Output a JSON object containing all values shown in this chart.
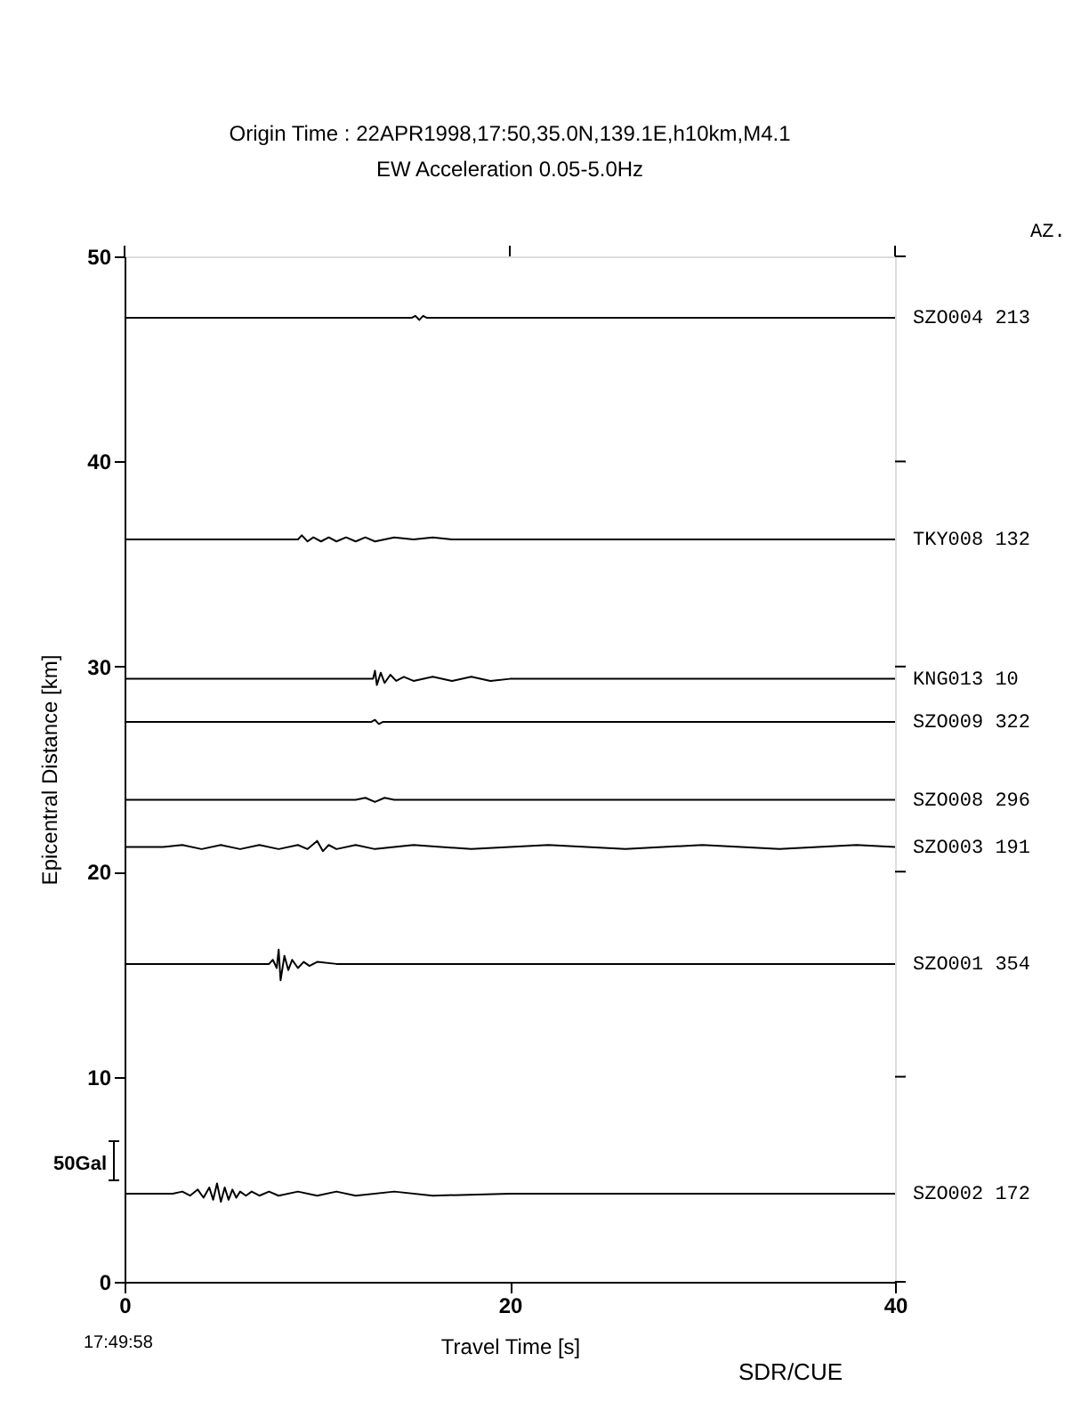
{
  "chart_data": {
    "type": "line",
    "title": "Origin Time : 22APR1998,17:50,35.0N,139.1E,h10km,M4.1",
    "subtitle": "EW Acceleration 0.05-5.0Hz",
    "xlabel": "Travel Time [s]",
    "ylabel": "Epicentral Distance [km]",
    "annotations": [
      "AZ.",
      "50Gal",
      "17:49:58",
      "SDR/CUE"
    ],
    "xlim": [
      0,
      40
    ],
    "xticks": [
      0,
      20,
      40
    ],
    "ylim": [
      0,
      50
    ],
    "yticks": [
      0,
      10,
      20,
      30,
      40,
      50
    ],
    "grid": false,
    "series": [
      {
        "name": "SZO004 213",
        "color": "#000000",
        "x": [
          0,
          14.9,
          15.1,
          15.3,
          15.5,
          15.7,
          40
        ],
        "values": [
          47.0,
          47.0,
          47.1,
          46.9,
          47.1,
          47.0,
          47.0
        ]
      },
      {
        "name": "TKY008 132",
        "color": "#000000",
        "x": [
          0,
          9.0,
          9.2,
          9.5,
          9.8,
          10.2,
          10.6,
          11,
          11.5,
          12,
          12.5,
          13,
          14,
          15,
          16,
          17,
          40
        ],
        "values": [
          36.2,
          36.2,
          36.4,
          36.1,
          36.3,
          36.1,
          36.3,
          36.1,
          36.3,
          36.1,
          36.3,
          36.1,
          36.3,
          36.2,
          36.3,
          36.2,
          36.2
        ]
      },
      {
        "name": "KNG013 10",
        "color": "#000000",
        "x": [
          0,
          12.9,
          13.0,
          13.1,
          13.3,
          13.5,
          13.8,
          14.1,
          14.5,
          15,
          16,
          17,
          18,
          19,
          20,
          40
        ],
        "values": [
          29.4,
          29.4,
          29.8,
          29.1,
          29.7,
          29.2,
          29.6,
          29.3,
          29.5,
          29.3,
          29.5,
          29.3,
          29.5,
          29.3,
          29.4,
          29.4
        ]
      },
      {
        "name": "SZO009 322",
        "color": "#000000",
        "x": [
          0,
          12.8,
          13.0,
          13.2,
          13.4,
          40
        ],
        "values": [
          27.3,
          27.3,
          27.4,
          27.2,
          27.3,
          27.3
        ]
      },
      {
        "name": "SZO008 296",
        "color": "#000000",
        "x": [
          0,
          12,
          12.5,
          13,
          13.5,
          14,
          40
        ],
        "values": [
          23.5,
          23.5,
          23.6,
          23.4,
          23.6,
          23.5,
          23.5
        ]
      },
      {
        "name": "SZO003 191",
        "color": "#000000",
        "x": [
          0,
          2,
          3,
          4,
          5,
          6,
          7,
          8,
          9,
          9.5,
          10,
          10.3,
          10.6,
          11,
          12,
          13,
          15,
          18,
          22,
          26,
          30,
          34,
          38,
          40
        ],
        "values": [
          21.2,
          21.2,
          21.3,
          21.1,
          21.3,
          21.1,
          21.3,
          21.1,
          21.3,
          21.1,
          21.5,
          21.0,
          21.3,
          21.1,
          21.3,
          21.1,
          21.3,
          21.1,
          21.3,
          21.1,
          21.3,
          21.1,
          21.3,
          21.2
        ]
      },
      {
        "name": "SZO001 354",
        "color": "#000000",
        "x": [
          0,
          7.5,
          7.7,
          7.9,
          8.0,
          8.1,
          8.3,
          8.5,
          8.7,
          9.0,
          9.3,
          9.6,
          10,
          11,
          40
        ],
        "values": [
          15.5,
          15.5,
          15.7,
          15.3,
          16.2,
          14.7,
          15.9,
          15.2,
          15.7,
          15.3,
          15.6,
          15.4,
          15.6,
          15.5,
          15.5
        ]
      },
      {
        "name": "SZO002 172",
        "color": "#000000",
        "x": [
          0,
          2.5,
          3.0,
          3.4,
          3.8,
          4.1,
          4.4,
          4.6,
          4.8,
          5.0,
          5.2,
          5.4,
          5.6,
          5.8,
          6.0,
          6.3,
          6.6,
          7,
          7.5,
          8,
          9,
          10,
          11,
          12,
          14,
          16,
          20,
          40
        ],
        "values": [
          4.3,
          4.3,
          4.4,
          4.2,
          4.5,
          4.1,
          4.6,
          4.0,
          4.8,
          3.9,
          4.6,
          4.0,
          4.5,
          4.1,
          4.4,
          4.2,
          4.4,
          4.2,
          4.4,
          4.2,
          4.4,
          4.2,
          4.4,
          4.2,
          4.4,
          4.2,
          4.3,
          4.3
        ]
      }
    ]
  }
}
